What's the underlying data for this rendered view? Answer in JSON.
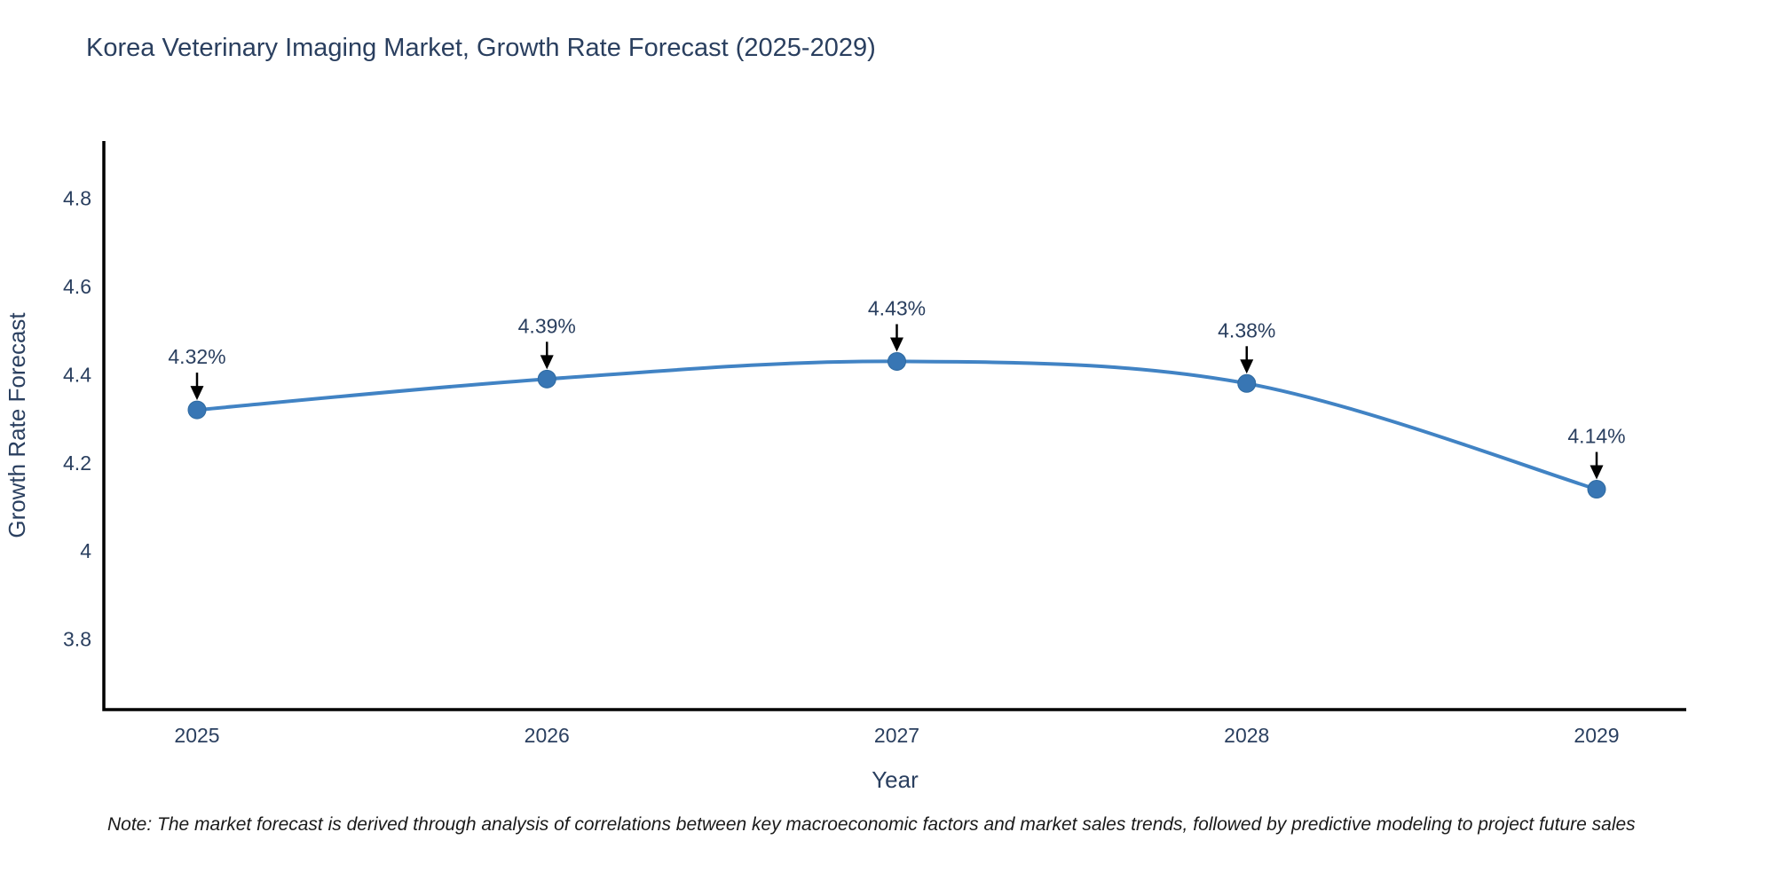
{
  "page": {
    "note": "Note: The market forecast is derived through analysis of correlations between key macroeconomic factors and market sales trends, followed by predictive modeling to project future sales"
  },
  "chart_data": {
    "type": "line",
    "title": "Korea Veterinary Imaging Market, Growth Rate Forecast (2025-2029)",
    "xlabel": "Year",
    "ylabel": "Growth Rate Forecast",
    "categories": [
      2025,
      2026,
      2027,
      2028,
      2029
    ],
    "series": [
      {
        "name": "Growth Rate Forecast",
        "values": [
          4.32,
          4.39,
          4.43,
          4.38,
          4.14
        ]
      }
    ],
    "point_labels": [
      "4.32%",
      "4.39%",
      "4.43%",
      "4.38%",
      "4.14%"
    ],
    "yticks": [
      3.8,
      4,
      4.2,
      4.4,
      4.6,
      4.8
    ],
    "ylim": [
      3.64,
      4.93
    ],
    "grid": false,
    "legend": false,
    "line_shape": "spline",
    "annotations_have_arrows": true,
    "colors": {
      "line": "#4183c4",
      "marker": "#3876b4",
      "marker_edge": "#2f6aa0",
      "axis": "#000000",
      "tick_text": "#2a3f5f",
      "annotation_text": "#2a3f5f",
      "arrow": "#000000"
    }
  }
}
